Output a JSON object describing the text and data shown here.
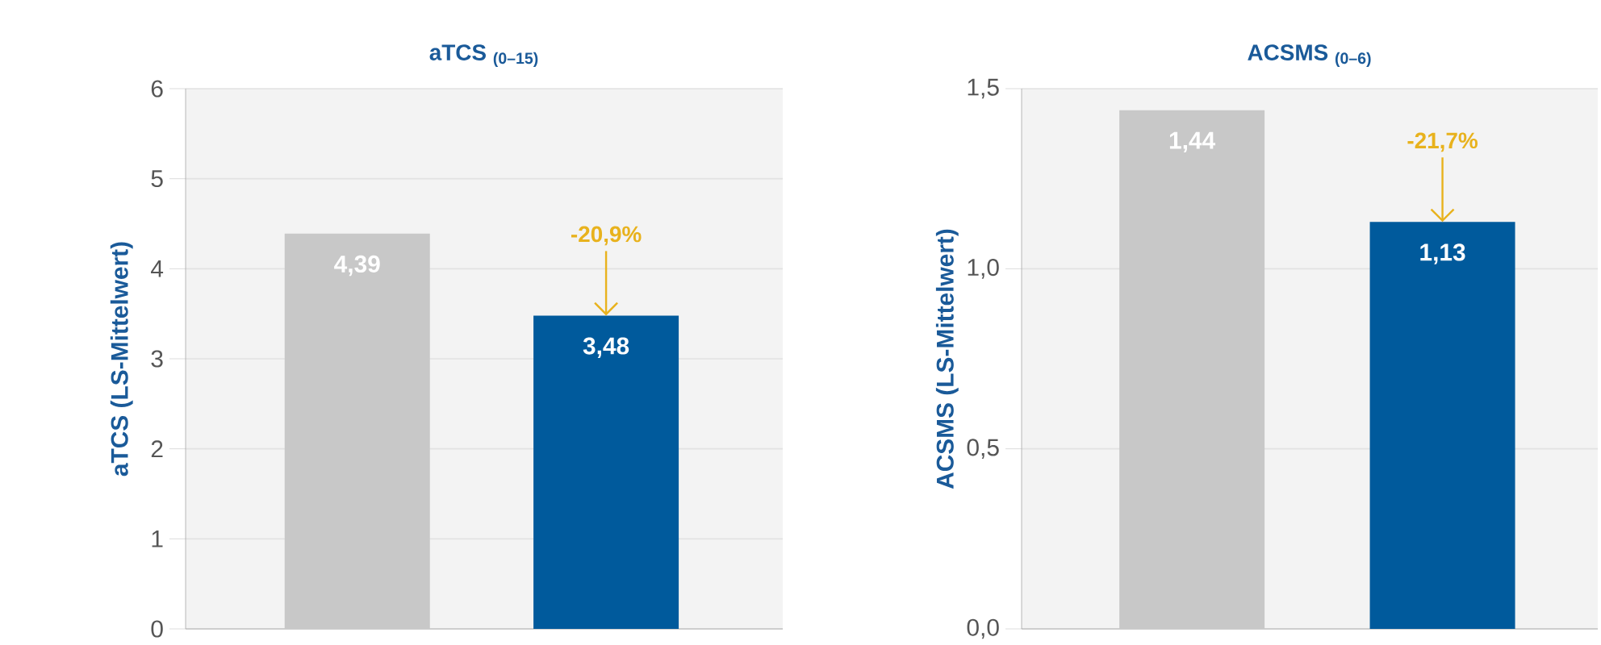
{
  "chart_data": [
    {
      "type": "bar",
      "title": "aTCS $_{(0–15)}$",
      "ylabel": "aTCS (LS-Mittelwert)",
      "categories": [
        null,
        null
      ],
      "values": [
        4.39,
        3.48
      ],
      "value_labels": [
        "4,39",
        "3,48"
      ],
      "colors": [
        "#c8c8c8",
        "#005a9c"
      ],
      "ylim": [
        0,
        6
      ],
      "yticks": [
        0,
        1,
        2,
        3,
        4,
        5,
        6
      ],
      "grid": "y",
      "tick_labels": "y",
      "annotations": [
        {
          "text": "-20,9%",
          "y": 3.48
        }
      ]
    },
    {
      "type": "bar",
      "title": "ACSMS $_{(0–6)}$",
      "ylabel": "ACSMS (LS-Mittelwert)",
      "categories": [
        null,
        null
      ],
      "values": [
        1.44,
        1.13
      ],
      "value_labels": [
        "1,44",
        "1,13"
      ],
      "colors": [
        "#c8c8c8",
        "#005a9c"
      ],
      "ylim": [
        0,
        1.5
      ],
      "yticks": [
        {
          "value": 0,
          "label": "0,0"
        },
        {
          "value": 0.5,
          "label": "0,5"
        },
        {
          "value": 1.0,
          "label": "1,0"
        },
        {
          "value": 1.5,
          "label": "1,5"
        }
      ],
      "grid": "y",
      "tick_labels": "y",
      "annotations": [
        {
          "text": "-21,7%",
          "y": 1.13
        }
      ]
    }
  ]
}
